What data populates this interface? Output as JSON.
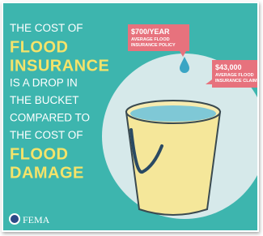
{
  "headline": {
    "lines": [
      {
        "text": "THE COST OF",
        "highlight": false
      },
      {
        "text": "FLOOD",
        "highlight": true
      },
      {
        "text": "INSURANCE",
        "highlight": true
      },
      {
        "text": "IS A DROP IN",
        "highlight": false
      },
      {
        "text": "THE BUCKET",
        "highlight": false
      },
      {
        "text": "COMPARED TO",
        "highlight": false
      },
      {
        "text": "THE COST OF",
        "highlight": false
      },
      {
        "text": "FLOOD",
        "highlight": true
      },
      {
        "text": "DAMAGE",
        "highlight": true
      }
    ]
  },
  "callouts": [
    {
      "amount": "$700/YEAR",
      "caption": [
        "AVERAGE FLOOD",
        "INSURANCE POLICY"
      ]
    },
    {
      "amount": "$43,000",
      "caption": [
        "AVERAGE FLOOD",
        "INSURANCE CLAIM"
      ]
    }
  ],
  "footer": {
    "logo": "FEMA"
  }
}
